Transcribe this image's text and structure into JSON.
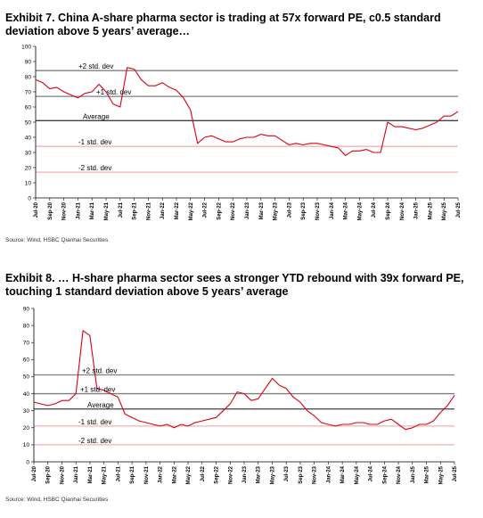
{
  "exhibits": [
    {
      "title": "Exhibit 7. China A-share pharma sector is trading at 57x forward PE, c0.5 standard deviation above 5 years’ average…",
      "source": "Source: Wind, HSBC Qianhai Securities"
    },
    {
      "title": "Exhibit 8. … H-share pharma sector sees a stronger YTD rebound with 39x forward PE, touching 1 standard deviation above 5 years’ average",
      "source": "Source: Wind, HSBC Qianhai Securities"
    }
  ],
  "colors": {
    "series": "#db0011",
    "plus2": "#7f7f7f",
    "plus1": "#7f7f7f",
    "average": "#404040",
    "minus1": "#f2b2b2",
    "minus2": "#f2b2b2"
  },
  "chart_data": [
    {
      "type": "line",
      "title": "Exhibit 7. China A-share pharma sector is trading at 57x forward PE, c0.5 standard deviation above 5 years’ average…",
      "ylim": [
        0,
        100
      ],
      "yticks": [
        0,
        10,
        20,
        30,
        40,
        50,
        60,
        70,
        80,
        90,
        100
      ],
      "xticks": [
        "Jul-20",
        "Sep-20",
        "Nov-20",
        "Jan-21",
        "Mar-21",
        "May-21",
        "Jul-21",
        "Sep-21",
        "Nov-21",
        "Jan-22",
        "Mar-22",
        "May-22",
        "Jul-22",
        "Sep-22",
        "Nov-22",
        "Jan-23",
        "Mar-23",
        "May-23",
        "Jul-23",
        "Sep-23",
        "Nov-23",
        "Jan-24",
        "Mar-24",
        "May-24",
        "Jul-24",
        "Sep-24",
        "Nov-24",
        "Jan-25",
        "Mar-25",
        "May-25",
        "Jul-25"
      ],
      "bands": [
        {
          "label": "+2 std. dev",
          "value": 84
        },
        {
          "label": "+1 std. dev",
          "value": 67
        },
        {
          "label": "Average",
          "value": 51
        },
        {
          "label": "-1 std. dev",
          "value": 34
        },
        {
          "label": "-2 std. dev",
          "value": 17
        }
      ],
      "series": [
        {
          "x": [
            0,
            0.5,
            1,
            1.5,
            2,
            2.5,
            3,
            3.5,
            4,
            4.5,
            5,
            5.5,
            6,
            6.5,
            7,
            7.5,
            8,
            8.5,
            9,
            9.5,
            10,
            10.5,
            11,
            11.5,
            12,
            12.5,
            13,
            13.5,
            14,
            14.5,
            15,
            15.5,
            16,
            16.5,
            17,
            17.5,
            18,
            18.5,
            19,
            19.5,
            20,
            20.5,
            21,
            21.5,
            22,
            22.5,
            23,
            23.5,
            24,
            24.5,
            25,
            25.5,
            26,
            26.5,
            27,
            27.5,
            28,
            28.5,
            29,
            29.5,
            30
          ],
          "values": [
            78,
            76,
            72,
            73,
            70,
            68,
            66,
            69,
            70,
            75,
            70,
            62,
            60,
            86,
            85,
            78,
            74,
            74,
            76,
            73,
            71,
            66,
            58,
            36,
            40,
            41,
            39,
            37,
            37,
            39,
            40,
            40,
            42,
            41,
            41,
            38,
            35,
            36,
            35,
            36,
            36,
            35,
            34,
            33,
            28,
            31,
            31,
            32,
            30,
            30,
            50,
            47,
            47,
            46,
            45,
            46,
            48,
            50,
            54,
            54,
            57
          ]
        }
      ]
    },
    {
      "type": "line",
      "title": "Exhibit 8. … H-share pharma sector sees a stronger YTD rebound with 39x forward PE, touching 1 standard deviation above 5 years’ average",
      "ylim": [
        0,
        90
      ],
      "yticks": [
        0,
        10,
        20,
        30,
        40,
        50,
        60,
        70,
        80,
        90
      ],
      "xticks": [
        "Jul-20",
        "Sep-20",
        "Nov-20",
        "Jan-21",
        "Mar-21",
        "May-21",
        "Jul-21",
        "Sep-21",
        "Nov-21",
        "Jan-22",
        "Mar-22",
        "May-22",
        "Jul-22",
        "Sep-22",
        "Nov-22",
        "Jan-23",
        "Mar-23",
        "May-23",
        "Jul-23",
        "Sep-23",
        "Nov-23",
        "Jan-24",
        "Mar-24",
        "May-24",
        "Jul-24",
        "Sep-24",
        "Nov-24",
        "Jan-25",
        "Mar-25",
        "May-25",
        "Jul-25"
      ],
      "bands": [
        {
          "label": "+2 std. dev",
          "value": 51
        },
        {
          "label": "+1 std. dev",
          "value": 40
        },
        {
          "label": "Average",
          "value": 31
        },
        {
          "label": "-1 std. dev",
          "value": 21
        },
        {
          "label": "-2 std. dev",
          "value": 10
        }
      ],
      "series": [
        {
          "x": [
            0,
            0.5,
            1,
            1.5,
            2,
            2.5,
            3,
            3.5,
            4,
            4.5,
            5,
            5.5,
            6,
            6.5,
            7,
            7.5,
            8,
            8.5,
            9,
            9.5,
            10,
            10.5,
            11,
            11.5,
            12,
            12.5,
            13,
            13.5,
            14,
            14.5,
            15,
            15.5,
            16,
            16.5,
            17,
            17.5,
            18,
            18.5,
            19,
            19.5,
            20,
            20.5,
            21,
            21.5,
            22,
            22.5,
            23,
            23.5,
            24,
            24.5,
            25,
            25.5,
            26,
            26.5,
            27,
            27.5,
            28,
            28.5,
            29,
            29.5,
            30
          ],
          "values": [
            35,
            34,
            33,
            34,
            36,
            36,
            40,
            77,
            74,
            43,
            42,
            40,
            38,
            28,
            26,
            24,
            23,
            22,
            21,
            22,
            20,
            22,
            21,
            23,
            24,
            25,
            26,
            30,
            34,
            41,
            40,
            36,
            37,
            43,
            49,
            45,
            43,
            38,
            35,
            30,
            27,
            23,
            22,
            21,
            22,
            22,
            23,
            23,
            22,
            22,
            24,
            25,
            22,
            19,
            20,
            22,
            22,
            24,
            29,
            33,
            39
          ]
        }
      ]
    }
  ]
}
